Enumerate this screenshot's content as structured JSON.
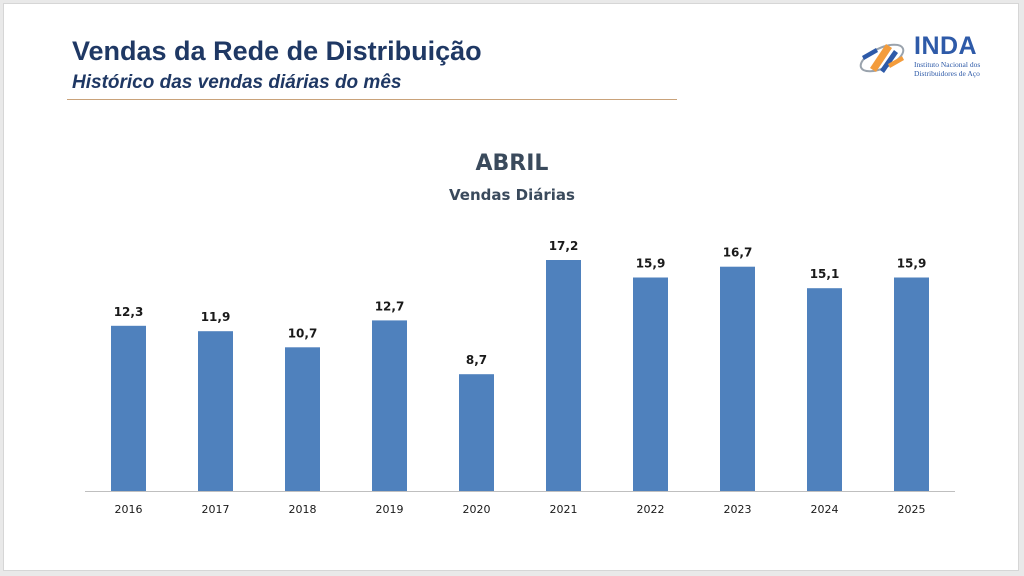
{
  "header": {
    "title": "Vendas da Rede de Distribuição",
    "subtitle": "Histórico das vendas diárias do mês"
  },
  "logo": {
    "name": "INDA",
    "tagline_line1": "Instituto Nacional dos",
    "tagline_line2": "Distribuidores de Aço",
    "icon": "inda-logo-mark-icon"
  },
  "colors": {
    "bar": "#4f81bd",
    "title": "#1f3864",
    "logo": "#2e5aa8",
    "logo_accent": "#f39c3c",
    "rule": "#c9a27a"
  },
  "chart_data": {
    "type": "bar",
    "title": "ABRIL",
    "subtitle": "Vendas Diárias",
    "categories": [
      "2016",
      "2017",
      "2018",
      "2019",
      "2020",
      "2021",
      "2022",
      "2023",
      "2024",
      "2025"
    ],
    "values": [
      12.3,
      11.9,
      10.7,
      12.7,
      8.7,
      17.2,
      15.9,
      16.7,
      15.1,
      15.9
    ],
    "value_labels": [
      "12,3",
      "11,9",
      "10,7",
      "12,7",
      "8,7",
      "17,2",
      "15,9",
      "16,7",
      "15,1",
      "15,9"
    ],
    "xlabel": "",
    "ylabel": "",
    "ylim": [
      0,
      17.2
    ],
    "grid": false,
    "legend": "none"
  }
}
